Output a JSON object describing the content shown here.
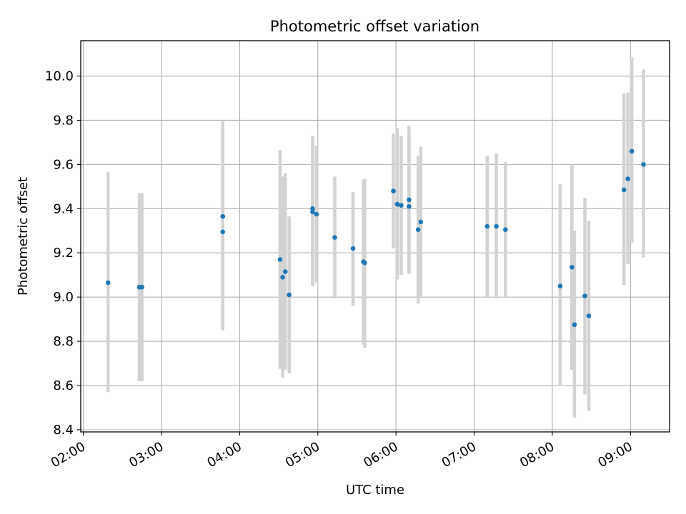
{
  "chart_data": {
    "type": "scatter",
    "title": "Photometric offset variation",
    "xlabel": "UTC time",
    "ylabel": "Photometric offset",
    "x_unit": "UTC time (HH:MM)",
    "xlim": [
      "01:58",
      "09:30"
    ],
    "ylim": [
      8.39,
      10.16
    ],
    "x_ticks": [
      "02:00",
      "03:00",
      "04:00",
      "05:00",
      "06:00",
      "07:00",
      "08:00",
      "09:00"
    ],
    "y_ticks": [
      8.4,
      8.6,
      8.8,
      9.0,
      9.2,
      9.4,
      9.6,
      9.8,
      10.0
    ],
    "y_tick_labels": [
      "8.4",
      "8.6",
      "8.8",
      "9.0",
      "9.2",
      "9.4",
      "9.6",
      "9.8",
      "10.0"
    ],
    "grid": true,
    "point_color": "#1f77b4",
    "errorbar_color": "#d3d3d3",
    "points": [
      {
        "x": "02:19",
        "y": 9.065,
        "ylow": 8.57,
        "yhigh": 9.565
      },
      {
        "x": "02:43",
        "y": 9.045,
        "ylow": 8.62,
        "yhigh": 9.47
      },
      {
        "x": "02:45",
        "y": 9.045,
        "ylow": 8.62,
        "yhigh": 9.47
      },
      {
        "x": "03:47",
        "y": 9.365,
        "ylow": 8.93,
        "yhigh": 9.8
      },
      {
        "x": "03:47",
        "y": 9.295,
        "ylow": 8.85,
        "yhigh": 9.74
      },
      {
        "x": "04:31",
        "y": 9.17,
        "ylow": 8.675,
        "yhigh": 9.665
      },
      {
        "x": "04:33",
        "y": 9.09,
        "ylow": 8.635,
        "yhigh": 9.545
      },
      {
        "x": "04:35",
        "y": 9.115,
        "ylow": 8.67,
        "yhigh": 9.56
      },
      {
        "x": "04:38",
        "y": 9.01,
        "ylow": 8.655,
        "yhigh": 9.365
      },
      {
        "x": "04:56",
        "y": 9.4,
        "ylow": 9.05,
        "yhigh": 9.73
      },
      {
        "x": "04:56",
        "y": 9.385,
        "ylow": 9.05,
        "yhigh": 9.72
      },
      {
        "x": "04:59",
        "y": 9.375,
        "ylow": 9.065,
        "yhigh": 9.685
      },
      {
        "x": "05:13",
        "y": 9.27,
        "ylow": 8.995,
        "yhigh": 9.545
      },
      {
        "x": "05:27",
        "y": 9.22,
        "ylow": 8.96,
        "yhigh": 9.475
      },
      {
        "x": "05:35",
        "y": 9.16,
        "ylow": 8.785,
        "yhigh": 9.53
      },
      {
        "x": "05:36",
        "y": 9.155,
        "ylow": 8.77,
        "yhigh": 9.535
      },
      {
        "x": "05:58",
        "y": 9.48,
        "ylow": 9.22,
        "yhigh": 9.74
      },
      {
        "x": "06:01",
        "y": 9.42,
        "ylow": 9.08,
        "yhigh": 9.765
      },
      {
        "x": "06:04",
        "y": 9.415,
        "ylow": 9.1,
        "yhigh": 9.73
      },
      {
        "x": "06:10",
        "y": 9.44,
        "ylow": 9.105,
        "yhigh": 9.775
      },
      {
        "x": "06:10",
        "y": 9.41,
        "ylow": 9.105,
        "yhigh": 9.72
      },
      {
        "x": "06:17",
        "y": 9.305,
        "ylow": 8.97,
        "yhigh": 9.64
      },
      {
        "x": "06:19",
        "y": 9.34,
        "ylow": 9.0,
        "yhigh": 9.68
      },
      {
        "x": "07:10",
        "y": 9.32,
        "ylow": 9.0,
        "yhigh": 9.64
      },
      {
        "x": "07:17",
        "y": 9.32,
        "ylow": 8.995,
        "yhigh": 9.65
      },
      {
        "x": "07:24",
        "y": 9.305,
        "ylow": 9.0,
        "yhigh": 9.61
      },
      {
        "x": "08:06",
        "y": 9.05,
        "ylow": 8.6,
        "yhigh": 9.51
      },
      {
        "x": "08:15",
        "y": 9.135,
        "ylow": 8.67,
        "yhigh": 9.6
      },
      {
        "x": "08:17",
        "y": 8.875,
        "ylow": 8.455,
        "yhigh": 9.3
      },
      {
        "x": "08:25",
        "y": 9.005,
        "ylow": 8.56,
        "yhigh": 9.45
      },
      {
        "x": "08:28",
        "y": 8.915,
        "ylow": 8.485,
        "yhigh": 9.345
      },
      {
        "x": "08:55",
        "y": 9.485,
        "ylow": 9.055,
        "yhigh": 9.92
      },
      {
        "x": "08:58",
        "y": 9.535,
        "ylow": 9.15,
        "yhigh": 9.925
      },
      {
        "x": "09:01",
        "y": 9.66,
        "ylow": 9.245,
        "yhigh": 10.085
      },
      {
        "x": "09:10",
        "y": 9.6,
        "ylow": 9.18,
        "yhigh": 10.03
      }
    ]
  }
}
